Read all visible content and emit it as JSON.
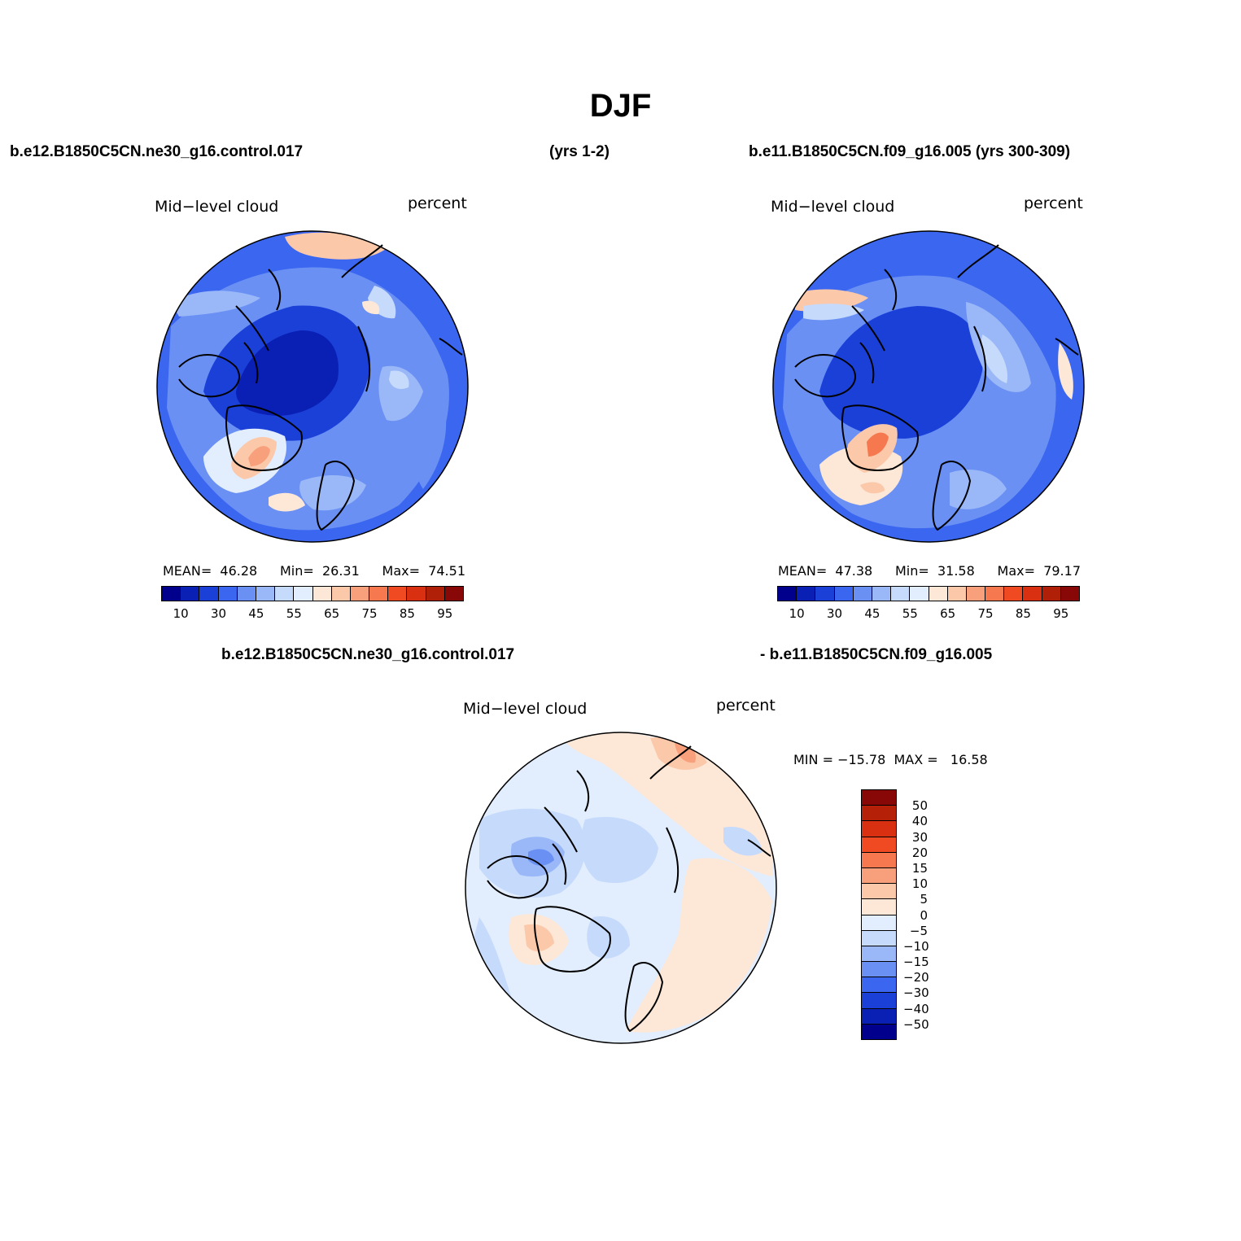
{
  "figure": {
    "title": "DJF"
  },
  "top_row": {
    "left_case": "b.e12.B1850C5CN.ne30_g16.control.017",
    "left_years": "(yrs 1-2)",
    "right_case": "b.e11.B1850C5CN.f09_g16.005 (yrs 300-309)"
  },
  "panels": [
    {
      "variable": "Mid−level cloud",
      "units": "percent",
      "stats": {
        "mean_label": "MEAN=",
        "mean": "46.28",
        "min_label": "Min=",
        "min": "26.31",
        "max_label": "Max=",
        "max": "74.51"
      }
    },
    {
      "variable": "Mid−level cloud",
      "units": "percent",
      "stats": {
        "mean_label": "MEAN=",
        "mean": "47.38",
        "min_label": "Min=",
        "min": "31.58",
        "max_label": "Max=",
        "max": "79.17"
      }
    }
  ],
  "difference": {
    "case_a": "b.e12.B1850C5CN.ne30_g16.control.017",
    "case_b": "- b.e11.B1850C5CN.f09_g16.005",
    "variable": "Mid−level cloud",
    "units": "percent",
    "minmax": "MIN = −15.78  MAX =   16.58"
  },
  "abs_colorbar": {
    "tick_labels": [
      "10",
      "30",
      "45",
      "55",
      "65",
      "75",
      "85",
      "95"
    ],
    "colors": [
      "#00008c",
      "#0a1fb4",
      "#1a40d8",
      "#3a66f0",
      "#6a90f4",
      "#9ab8f8",
      "#c6dafc",
      "#e2eefe",
      "#fde8d8",
      "#fcc8aa",
      "#f8a07c",
      "#f6784e",
      "#f04a22",
      "#d83010",
      "#b02008",
      "#880808"
    ]
  },
  "diff_colorbar": {
    "tick_labels": [
      "50",
      "40",
      "30",
      "20",
      "15",
      "10",
      "5",
      "0",
      "−5",
      "−10",
      "−15",
      "−20",
      "−30",
      "−40",
      "−50"
    ],
    "colors": [
      "#880808",
      "#b52008",
      "#d83010",
      "#f04a22",
      "#f6784e",
      "#f8a07c",
      "#fcc8aa",
      "#fde8d8",
      "#e2eefe",
      "#c6dafc",
      "#9ab8f8",
      "#6a90f4",
      "#3a66f0",
      "#1a40d8",
      "#0a1fb4",
      "#00008c"
    ]
  }
}
